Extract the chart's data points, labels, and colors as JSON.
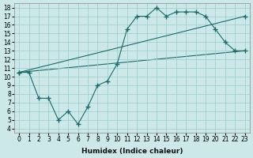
{
  "title": "",
  "xlabel": "Humidex (Indice chaleur)",
  "ylabel": "",
  "bg_color": "#cce8e8",
  "grid_color": "#99cccc",
  "line_color": "#1a6b6b",
  "xlim": [
    -0.5,
    23.5
  ],
  "ylim": [
    3.5,
    18.5
  ],
  "xticks": [
    0,
    1,
    2,
    3,
    4,
    5,
    6,
    7,
    8,
    9,
    10,
    11,
    12,
    13,
    14,
    15,
    16,
    17,
    18,
    19,
    20,
    21,
    22,
    23
  ],
  "yticks": [
    4,
    5,
    6,
    7,
    8,
    9,
    10,
    11,
    12,
    13,
    14,
    15,
    16,
    17,
    18
  ],
  "line1_x": [
    0,
    1,
    2,
    3,
    4,
    5,
    6,
    7,
    8,
    9,
    10,
    11,
    12,
    13,
    14,
    15,
    16,
    17,
    18,
    19,
    20,
    21,
    22,
    23
  ],
  "line1_y": [
    10.5,
    10.5,
    7.5,
    7.5,
    5.0,
    6.0,
    4.5,
    6.5,
    9.0,
    9.5,
    11.5,
    15.5,
    17.0,
    17.0,
    18.0,
    17.0,
    17.5,
    17.5,
    17.5,
    17.0,
    15.5,
    14.0,
    13.0,
    13.0
  ],
  "line2_x": [
    0,
    23
  ],
  "line2_y": [
    10.5,
    17.0
  ],
  "line3_x": [
    0,
    23
  ],
  "line3_y": [
    10.5,
    13.0
  ],
  "marker": "+"
}
